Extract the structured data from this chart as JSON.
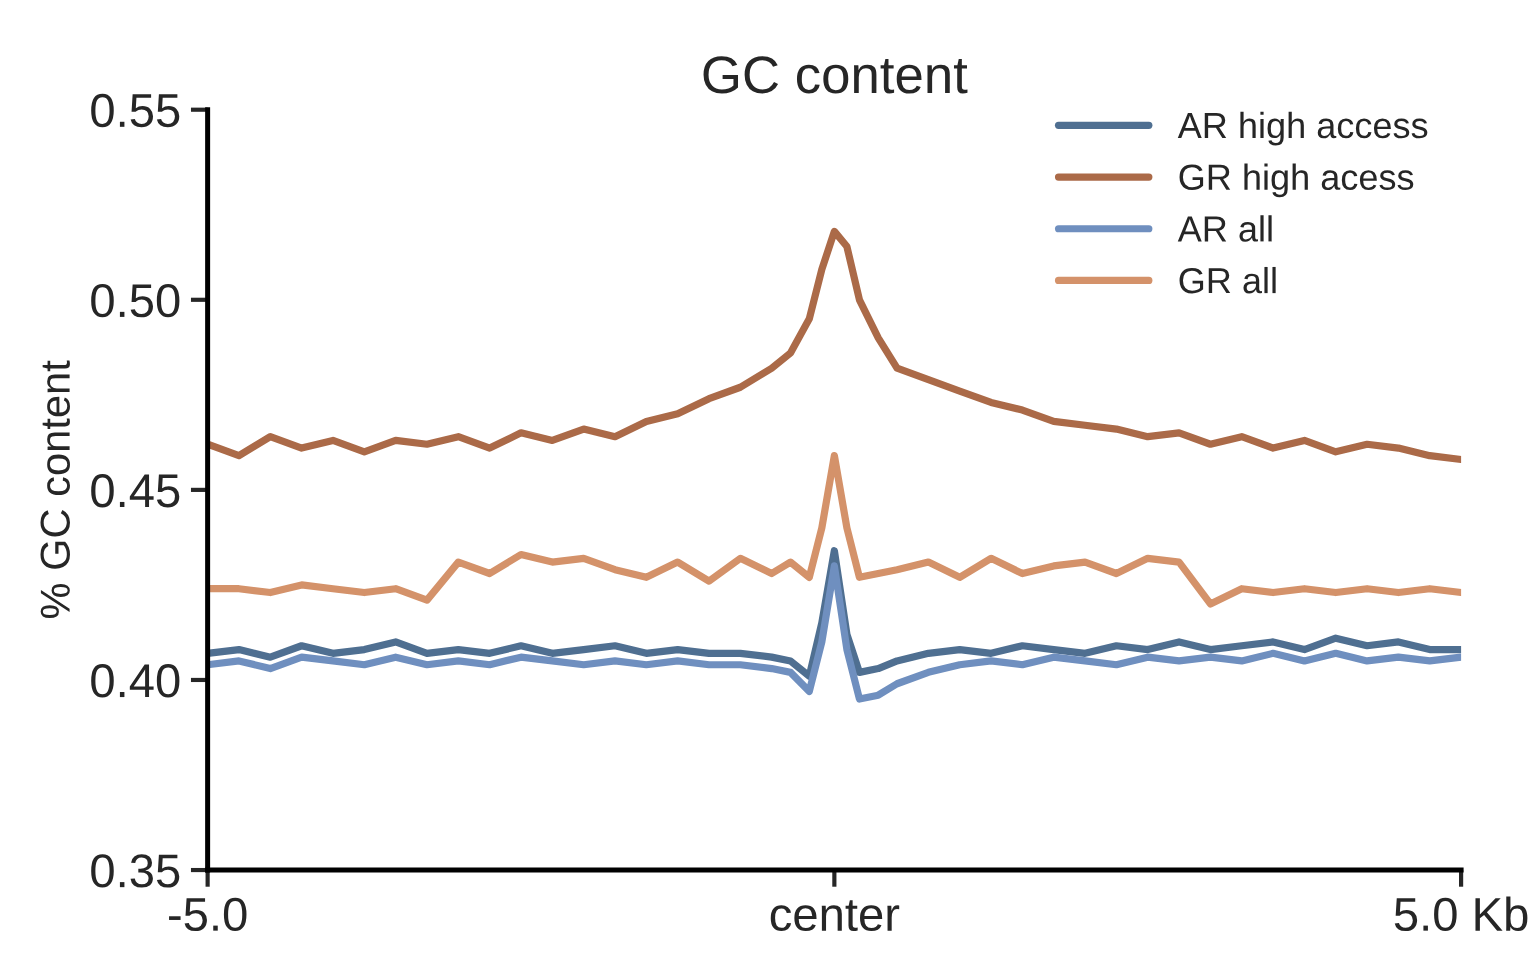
{
  "chart_data": {
    "type": "line",
    "title": "GC content",
    "ylabel": "% GC content",
    "x": [
      -5,
      -4.75,
      -4.5,
      -4.25,
      -4,
      -3.75,
      -3.5,
      -3.25,
      -3,
      -2.75,
      -2.5,
      -2.25,
      -2,
      -1.75,
      -1.5,
      -1.25,
      -1,
      -0.75,
      -0.5,
      -0.35,
      -0.2,
      -0.1,
      0,
      0.1,
      0.2,
      0.35,
      0.5,
      0.75,
      1,
      1.25,
      1.5,
      1.75,
      2,
      2.25,
      2.5,
      2.75,
      3,
      3.25,
      3.5,
      3.75,
      4,
      4.25,
      4.5,
      4.75,
      5
    ],
    "series": [
      {
        "name": "AR high access",
        "color": "#4f6f91",
        "values": [
          0.407,
          0.408,
          0.406,
          0.409,
          0.407,
          0.408,
          0.41,
          0.407,
          0.408,
          0.407,
          0.409,
          0.407,
          0.408,
          0.409,
          0.407,
          0.408,
          0.407,
          0.407,
          0.406,
          0.405,
          0.401,
          0.415,
          0.434,
          0.412,
          0.402,
          0.403,
          0.405,
          0.407,
          0.408,
          0.407,
          0.409,
          0.408,
          0.407,
          0.409,
          0.408,
          0.41,
          0.408,
          0.409,
          0.41,
          0.408,
          0.411,
          0.409,
          0.41,
          0.408,
          0.408
        ]
      },
      {
        "name": "GR high acess",
        "color": "#ab6a48",
        "values": [
          0.462,
          0.459,
          0.464,
          0.461,
          0.463,
          0.46,
          0.463,
          0.462,
          0.464,
          0.461,
          0.465,
          0.463,
          0.466,
          0.464,
          0.468,
          0.47,
          0.474,
          0.477,
          0.482,
          0.486,
          0.495,
          0.508,
          0.518,
          0.514,
          0.5,
          0.49,
          0.482,
          0.479,
          0.476,
          0.473,
          0.471,
          0.468,
          0.467,
          0.466,
          0.464,
          0.465,
          0.462,
          0.464,
          0.461,
          0.463,
          0.46,
          0.462,
          0.461,
          0.459,
          0.458
        ]
      },
      {
        "name": "AR all",
        "color": "#6f8fbf",
        "values": [
          0.404,
          0.405,
          0.403,
          0.406,
          0.405,
          0.404,
          0.406,
          0.404,
          0.405,
          0.404,
          0.406,
          0.405,
          0.404,
          0.405,
          0.404,
          0.405,
          0.404,
          0.404,
          0.403,
          0.402,
          0.397,
          0.41,
          0.43,
          0.408,
          0.395,
          0.396,
          0.399,
          0.402,
          0.404,
          0.405,
          0.404,
          0.406,
          0.405,
          0.404,
          0.406,
          0.405,
          0.406,
          0.405,
          0.407,
          0.405,
          0.407,
          0.405,
          0.406,
          0.405,
          0.406
        ]
      },
      {
        "name": "GR all",
        "color": "#d4926a",
        "values": [
          0.424,
          0.424,
          0.423,
          0.425,
          0.424,
          0.423,
          0.424,
          0.421,
          0.431,
          0.428,
          0.433,
          0.431,
          0.432,
          0.429,
          0.427,
          0.431,
          0.426,
          0.432,
          0.428,
          0.431,
          0.427,
          0.44,
          0.459,
          0.44,
          0.427,
          0.428,
          0.429,
          0.431,
          0.427,
          0.432,
          0.428,
          0.43,
          0.431,
          0.428,
          0.432,
          0.431,
          0.42,
          0.424,
          0.423,
          0.424,
          0.423,
          0.424,
          0.423,
          0.424,
          0.423
        ]
      }
    ],
    "xlim": [
      -5,
      5
    ],
    "xticks": [
      {
        "value": -5,
        "label": "-5.0"
      },
      {
        "value": 0,
        "label": "center"
      },
      {
        "value": 5,
        "label": "5.0 Kb"
      }
    ],
    "ylim": [
      0.35,
      0.55
    ],
    "yticks": [
      {
        "value": 0.35,
        "label": "0.35"
      },
      {
        "value": 0.4,
        "label": "0.40"
      },
      {
        "value": 0.45,
        "label": "0.45"
      },
      {
        "value": 0.5,
        "label": "0.50"
      },
      {
        "value": 0.55,
        "label": "0.55"
      }
    ],
    "grid": false,
    "legend": "top right",
    "line_style": "solid"
  }
}
